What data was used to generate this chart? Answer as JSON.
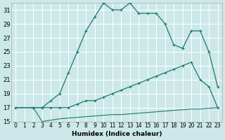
{
  "xlabel": "Humidex (Indice chaleur)",
  "bg_color": "#cce8e8",
  "grid_color": "#b0d0d0",
  "line_color": "#1a7a6e",
  "xlim": [
    -0.5,
    23.5
  ],
  "ylim": [
    15,
    32
  ],
  "xticks": [
    0,
    1,
    2,
    3,
    4,
    5,
    6,
    7,
    8,
    9,
    10,
    11,
    12,
    13,
    14,
    15,
    16,
    17,
    18,
    19,
    20,
    21,
    22,
    23
  ],
  "yticks": [
    15,
    17,
    19,
    21,
    23,
    25,
    27,
    29,
    31
  ],
  "series": [
    {
      "x": [
        0,
        2,
        3,
        4,
        5,
        6,
        7,
        8,
        9,
        10,
        11,
        12,
        13,
        14,
        15,
        16,
        17,
        18,
        19,
        20,
        21,
        22,
        23
      ],
      "y": [
        17,
        17,
        17,
        18,
        19,
        22,
        25,
        28,
        30,
        32,
        31,
        31,
        32,
        30.5,
        30.5,
        30.5,
        29,
        26,
        25.5,
        28,
        28,
        25,
        20
      ]
    },
    {
      "x": [
        0,
        2,
        3,
        4,
        5,
        6,
        7,
        8,
        9,
        10,
        11,
        12,
        13,
        14,
        15,
        16,
        17,
        18,
        19,
        20,
        21,
        22,
        23
      ],
      "y": [
        17,
        17,
        17,
        17,
        17,
        17,
        17.5,
        18,
        18,
        18.5,
        19,
        19.5,
        20,
        20.5,
        21,
        21.5,
        22,
        22.5,
        23,
        23.5,
        21,
        20,
        17
      ]
    },
    {
      "x": [
        0,
        2,
        3,
        4,
        5,
        6,
        7,
        8,
        9,
        10,
        11,
        12,
        13,
        14,
        15,
        16,
        17,
        18,
        19,
        20,
        21,
        22,
        23
      ],
      "y": [
        17,
        17,
        15,
        15.2,
        15.4,
        15.5,
        15.6,
        15.7,
        15.8,
        15.9,
        16,
        16,
        16.1,
        16.2,
        16.3,
        16.4,
        16.5,
        16.6,
        16.7,
        16.8,
        16.8,
        16.9,
        17
      ]
    }
  ]
}
